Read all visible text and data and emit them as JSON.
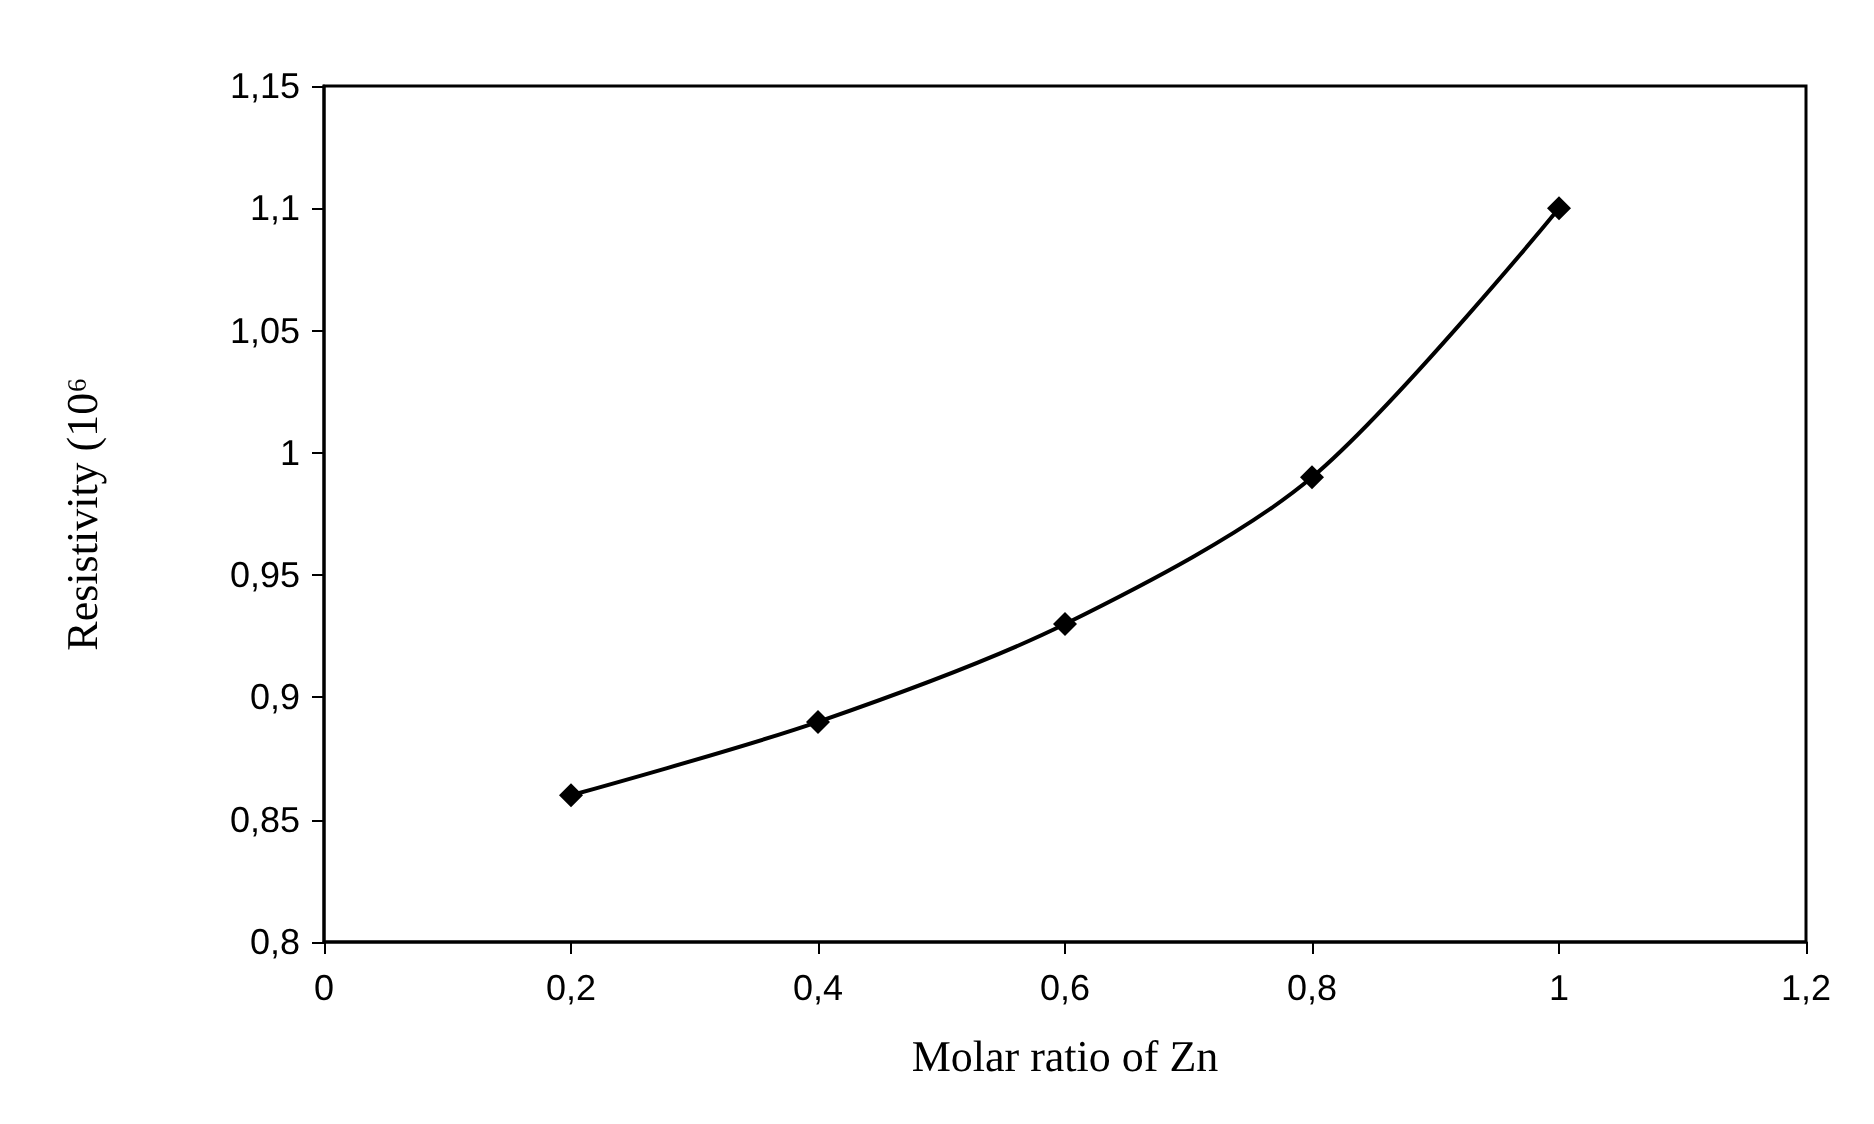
{
  "chart_data": {
    "type": "line",
    "xlabel": "Molar ratio of Zn",
    "ylabel": "Resistivity (10⁶",
    "x": [
      0.2,
      0.4,
      0.6,
      0.8,
      1
    ],
    "series": [
      {
        "color": "#000000",
        "values": [
          0.86,
          0.89,
          0.93,
          0.99,
          1.1
        ]
      }
    ],
    "xlim": [
      0,
      1.2
    ],
    "xticks": [
      0,
      {
        "value": 0.2,
        "label": "0,2"
      },
      {
        "value": 0.4,
        "label": "0,4"
      },
      {
        "value": 0.6,
        "label": "0,6"
      },
      {
        "value": 0.8,
        "label": "0,8"
      },
      1,
      {
        "value": 1.2,
        "label": "1,2"
      }
    ],
    "ylim": [
      0.8,
      1.15
    ],
    "yticks": [
      {
        "value": 0.8,
        "label": "0,8"
      },
      {
        "value": 0.85,
        "label": "0,85"
      },
      {
        "value": 0.9,
        "label": "0,9"
      },
      {
        "value": 0.95,
        "label": "0,95"
      },
      1,
      {
        "value": 1.05,
        "label": "1,05"
      },
      {
        "value": 1.1,
        "label": "1,1"
      },
      {
        "value": 1.15,
        "label": "1,15"
      }
    ],
    "marker": "diamond",
    "line_style": "solid"
  }
}
